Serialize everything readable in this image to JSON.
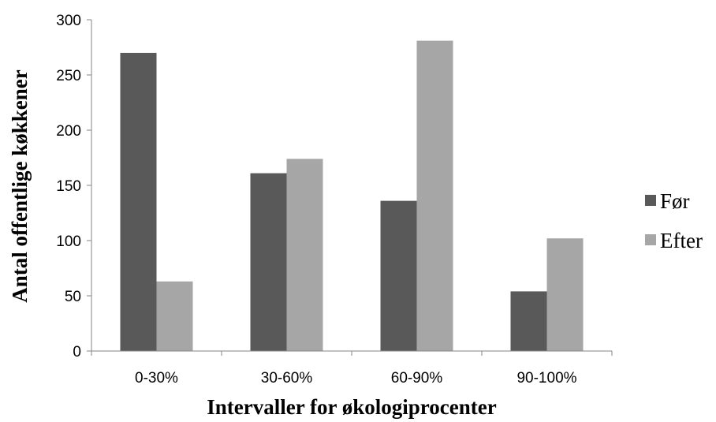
{
  "chart_data": {
    "type": "bar",
    "title": "",
    "xlabel": "Intervaller for økologiprocenter",
    "ylabel": "Antal offentlige køkkener",
    "categories": [
      "0-30%",
      "30-60%",
      "60-90%",
      "90-100%"
    ],
    "series": [
      {
        "name": "Før",
        "color": "#595959",
        "values": [
          270,
          161,
          136,
          54
        ]
      },
      {
        "name": "Efter",
        "color": "#a6a6a6",
        "values": [
          63,
          174,
          281,
          102
        ]
      }
    ],
    "ylim": [
      0,
      300
    ],
    "yticks": [
      "0",
      "50",
      "100",
      "150",
      "200",
      "250",
      "300"
    ],
    "grid": false,
    "legend": "right"
  }
}
